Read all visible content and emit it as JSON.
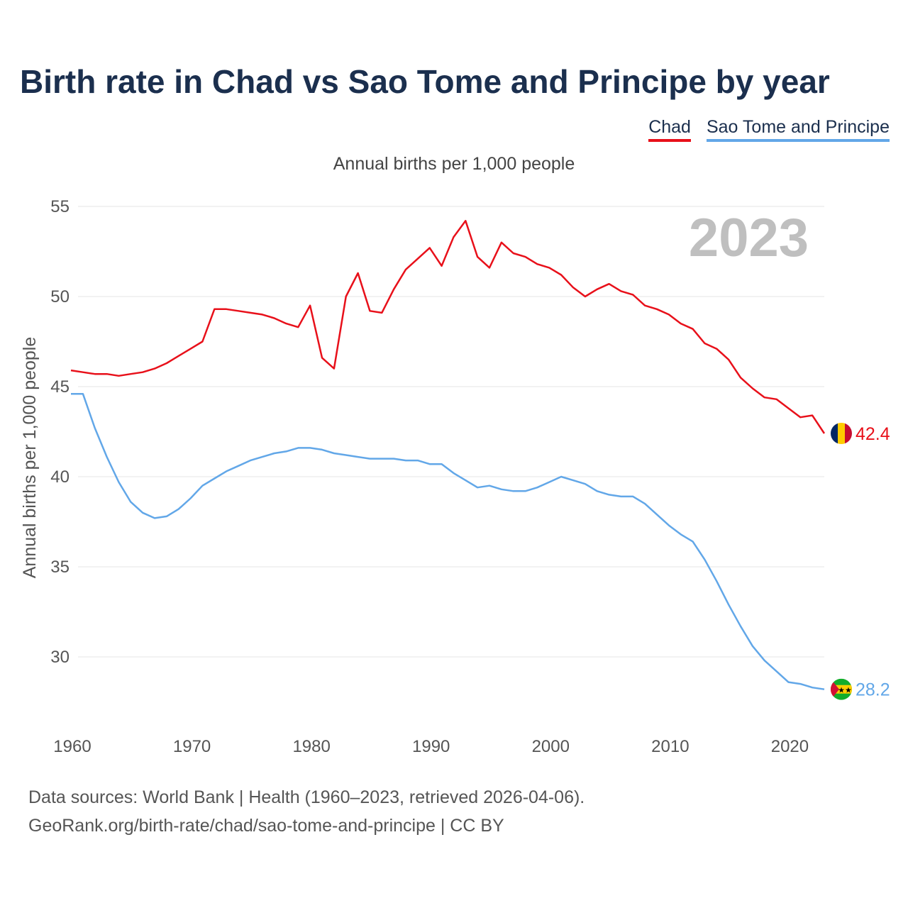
{
  "chart_data": {
    "type": "line",
    "title": "Birth rate in Chad vs Sao Tome and Principe by year",
    "subtitle": "Annual births per 1,000 people",
    "ylabel": "Annual births per 1,000 people",
    "xlabel": "",
    "year_marker": "2023",
    "xlim": [
      1960,
      2023
    ],
    "ylim": [
      26.5,
      55
    ],
    "x_ticks": [
      1960,
      1970,
      1980,
      1990,
      2000,
      2010,
      2020
    ],
    "y_ticks": [
      30,
      35,
      40,
      45,
      50,
      55
    ],
    "grid": true,
    "legend_position": "top-right",
    "x": [
      1960,
      1961,
      1962,
      1963,
      1964,
      1965,
      1966,
      1967,
      1968,
      1969,
      1970,
      1971,
      1972,
      1973,
      1974,
      1975,
      1976,
      1977,
      1978,
      1979,
      1980,
      1981,
      1982,
      1983,
      1984,
      1985,
      1986,
      1987,
      1988,
      1989,
      1990,
      1991,
      1992,
      1993,
      1994,
      1995,
      1996,
      1997,
      1998,
      1999,
      2000,
      2001,
      2002,
      2003,
      2004,
      2005,
      2006,
      2007,
      2008,
      2009,
      2010,
      2011,
      2012,
      2013,
      2014,
      2015,
      2016,
      2017,
      2018,
      2019,
      2020,
      2021,
      2022,
      2023
    ],
    "series": [
      {
        "name": "Chad",
        "color": "#e8101a",
        "end_label": "42.4",
        "values": [
          45.9,
          45.8,
          45.7,
          45.7,
          45.6,
          45.7,
          45.8,
          46.0,
          46.3,
          46.7,
          47.1,
          47.5,
          49.3,
          49.3,
          49.2,
          49.1,
          49.0,
          48.8,
          48.5,
          48.3,
          49.5,
          46.6,
          46.0,
          50.0,
          51.3,
          49.2,
          49.1,
          50.4,
          51.5,
          52.1,
          52.7,
          51.7,
          53.3,
          54.2,
          52.2,
          51.6,
          53.0,
          52.4,
          52.2,
          51.8,
          51.6,
          51.2,
          50.5,
          50.0,
          50.4,
          50.7,
          50.3,
          50.1,
          49.5,
          49.3,
          49.0,
          48.5,
          48.2,
          47.4,
          47.1,
          46.5,
          45.5,
          44.9,
          44.4,
          44.3,
          43.8,
          43.3,
          43.4,
          42.4
        ]
      },
      {
        "name": "Sao Tome and Principe",
        "color": "#62a7e8",
        "end_label": "28.2",
        "values": [
          44.6,
          44.6,
          42.7,
          41.1,
          39.7,
          38.6,
          38.0,
          37.7,
          37.8,
          38.2,
          38.8,
          39.5,
          39.9,
          40.3,
          40.6,
          40.9,
          41.1,
          41.3,
          41.4,
          41.6,
          41.6,
          41.5,
          41.3,
          41.2,
          41.1,
          41.0,
          41.0,
          41.0,
          40.9,
          40.9,
          40.7,
          40.7,
          40.2,
          39.8,
          39.4,
          39.5,
          39.3,
          39.2,
          39.2,
          39.4,
          39.7,
          40.0,
          39.8,
          39.6,
          39.2,
          39.0,
          38.9,
          38.9,
          38.5,
          37.9,
          37.3,
          36.8,
          36.4,
          35.4,
          34.2,
          32.9,
          31.7,
          30.6,
          29.8,
          29.2,
          28.6,
          28.5,
          28.3,
          28.2
        ]
      }
    ]
  },
  "footer": {
    "line1": "Data sources: World Bank | Health (1960–2023, retrieved 2026-04-06).",
    "line2": "GeoRank.org/birth-rate/chad/sao-tome-and-principe | CC BY"
  }
}
